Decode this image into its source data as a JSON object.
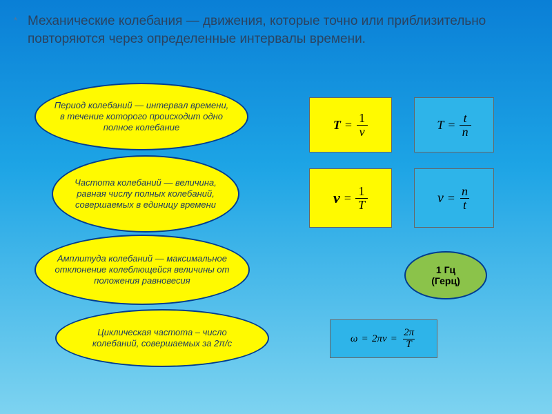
{
  "background": {
    "gradient_top": "#0a7fd6",
    "gradient_mid": "#1da4e5",
    "gradient_bot": "#7dd3f0"
  },
  "header": {
    "bullet": "*",
    "text": "Механические колебания — движения, которые точно или приблизительно повторяются через определенные интервалы времени.",
    "text_color": "#2b4360",
    "fontsize": 19
  },
  "ellipses": {
    "fill": "#fffa00",
    "border": "#003c8f",
    "text_color": "#1f3a5f",
    "fontsize": 13,
    "items": [
      {
        "text": "Период колебаний — интервал времени, в течение которого происходит одно полное колебание"
      },
      {
        "text": "Частота колебаний — величина, равная числу полных колебаний, совершаемых в единицу времени"
      },
      {
        "text": "Амплитуда колебаний — максимальное отклонение колеблющейся величины от положения равновесия"
      },
      {
        "text": "Циклическая частота – число колебаний, совершаемых за 2π/с"
      }
    ]
  },
  "hz_oval": {
    "fill": "#8bc34a",
    "border": "#003c8f",
    "text": "1 Гц\n(Герц)",
    "fontsize": 14
  },
  "formulas": {
    "yellow_bg": "#fffa00",
    "blue_bg": "#2eb4e9",
    "border": "#666666",
    "f1": {
      "lhs": "T",
      "num": "1",
      "den": "ν",
      "bg": "yellow"
    },
    "f2": {
      "lhs": "T",
      "num": "t",
      "den": "n",
      "bg": "blue"
    },
    "f3": {
      "lhs": "ν",
      "num": "1",
      "den": "T",
      "bg": "yellow"
    },
    "f4": {
      "lhs": "ν",
      "num": "n",
      "den": "t",
      "bg": "blue"
    },
    "f5": {
      "lhs": "ω",
      "mid": "2πν",
      "num": "2π",
      "den": "T",
      "bg": "blue"
    }
  }
}
